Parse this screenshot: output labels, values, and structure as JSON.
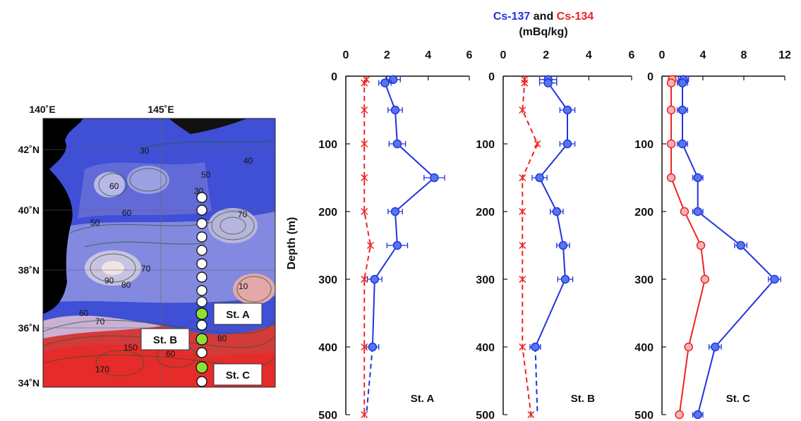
{
  "title": {
    "cs137": "Cs-137",
    "and": " and ",
    "cs134": "Cs-134",
    "units": "(mBq/kg)"
  },
  "colors": {
    "cs137": "#2233dd",
    "cs134": "#ee2222"
  },
  "depth_label": "Depth (m)",
  "map": {
    "lon_ticks": [
      "140˚E",
      "145˚E"
    ],
    "lat_ticks": [
      "42˚N",
      "40˚N",
      "38˚N",
      "36˚N",
      "34˚N"
    ],
    "contour_labels": [
      "30",
      "40",
      "50",
      "30",
      "60",
      "60",
      "50",
      "70",
      "70",
      "90",
      "80",
      "10",
      "60",
      "70",
      "150",
      "60",
      "80",
      "170"
    ],
    "station_labels": [
      "St. A",
      "St. B",
      "St. C"
    ]
  },
  "chart_data": [
    {
      "type": "line",
      "station": "St. A",
      "xlim": [
        0,
        6
      ],
      "xticks": [
        "0",
        "2",
        "4",
        "6"
      ],
      "ylim": [
        0,
        500
      ],
      "yticks": [
        "0",
        "100",
        "200",
        "300",
        "400",
        "500"
      ],
      "yaxis": "depth (m), increasing downward",
      "series": [
        {
          "name": "Cs-137",
          "color": "#2233dd",
          "depth": [
            5,
            10,
            50,
            100,
            150,
            200,
            250,
            300,
            400
          ],
          "value": [
            2.3,
            1.9,
            2.4,
            2.5,
            4.3,
            2.4,
            2.5,
            1.4,
            1.3
          ],
          "error": [
            0.35,
            0.3,
            0.35,
            0.4,
            0.5,
            0.35,
            0.5,
            0.35,
            0.3
          ],
          "extension": {
            "depth": [
              400,
              500
            ],
            "value": [
              1.3,
              1.0
            ]
          }
        },
        {
          "name": "Cs-134",
          "color": "#ee2222",
          "depth": [
            5,
            10,
            50,
            100,
            150,
            200,
            250,
            300,
            400,
            500
          ],
          "value": [
            1.0,
            0.9,
            0.9,
            0.9,
            0.9,
            0.9,
            1.2,
            0.9,
            0.9,
            0.9
          ],
          "error": []
        }
      ]
    },
    {
      "type": "line",
      "station": "St. B",
      "xlim": [
        0,
        6
      ],
      "xticks": [
        "0",
        "2",
        "4",
        "6"
      ],
      "ylim": [
        0,
        500
      ],
      "yticks": [
        "0",
        "100",
        "200",
        "300",
        "400",
        "500"
      ],
      "series": [
        {
          "name": "Cs-137",
          "color": "#2233dd",
          "depth": [
            5,
            10,
            50,
            100,
            150,
            200,
            250,
            300,
            400
          ],
          "value": [
            2.1,
            2.1,
            3.0,
            3.0,
            1.7,
            2.5,
            2.8,
            2.9,
            1.5
          ],
          "error": [
            0.4,
            0.4,
            0.35,
            0.35,
            0.35,
            0.3,
            0.3,
            0.35,
            0.25
          ],
          "extension": {
            "depth": [
              400,
              500
            ],
            "value": [
              1.5,
              1.6
            ]
          }
        },
        {
          "name": "Cs-134",
          "color": "#ee2222",
          "depth": [
            5,
            10,
            50,
            100,
            150,
            200,
            250,
            300,
            400,
            500
          ],
          "value": [
            1.0,
            1.0,
            0.9,
            1.6,
            0.9,
            0.9,
            0.9,
            0.9,
            0.9,
            1.3
          ],
          "error": []
        }
      ]
    },
    {
      "type": "line",
      "station": "St. C",
      "xlim": [
        0,
        12
      ],
      "xticks": [
        "0",
        "4",
        "8",
        "12"
      ],
      "ylim": [
        0,
        500
      ],
      "yticks": [
        "0",
        "100",
        "200",
        "300",
        "400",
        "500"
      ],
      "series": [
        {
          "name": "Cs-137",
          "color": "#2233dd",
          "depth": [
            5,
            10,
            50,
            100,
            150,
            200,
            250,
            300,
            400,
            500
          ],
          "value": [
            2.1,
            2.0,
            2.0,
            2.0,
            3.5,
            3.5,
            7.7,
            11.0,
            5.2,
            3.5
          ],
          "error": [
            0.5,
            0.5,
            0.5,
            0.5,
            0.5,
            0.5,
            0.6,
            0.6,
            0.6,
            0.5
          ]
        },
        {
          "name": "Cs-134",
          "color": "#ee2222",
          "depth": [
            5,
            10,
            50,
            100,
            150,
            200,
            250,
            300,
            400,
            500
          ],
          "value": [
            1.0,
            0.9,
            0.9,
            0.9,
            0.9,
            2.2,
            3.8,
            4.2,
            2.6,
            1.7
          ],
          "error": []
        }
      ]
    }
  ]
}
